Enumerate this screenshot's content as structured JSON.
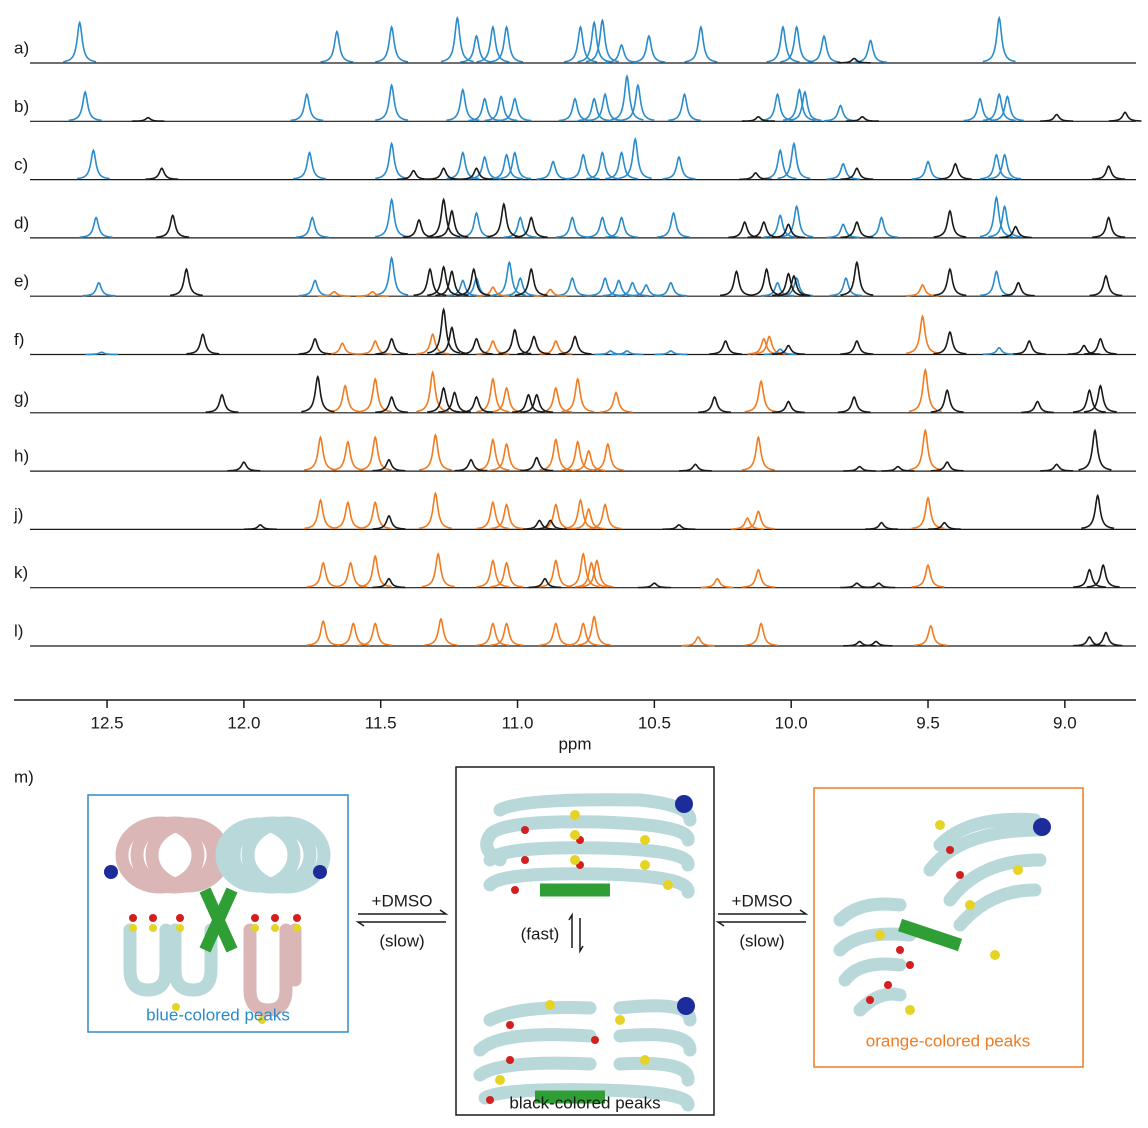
{
  "chart_data": {
    "type": "spectrum",
    "x_label": "ppm",
    "xlim": [
      12.84,
      8.74
    ],
    "xticks": [
      12.5,
      {
        "value": 12,
        "label": "12.0"
      },
      11.5,
      {
        "value": 11,
        "label": "11.0"
      },
      10.5,
      {
        "value": 10,
        "label": "10.0"
      },
      9.5,
      {
        "value": 9,
        "label": "9.0"
      }
    ],
    "series": [
      {
        "name": "a)",
        "peaks": [
          {
            "color": "#2b8ccc",
            "x": [
              12.6,
              11.66,
              11.46,
              11.22,
              11.15,
              11.09,
              11.04,
              10.77,
              10.72,
              10.69,
              10.62,
              10.52,
              10.33,
              10.03,
              9.98,
              9.88,
              9.71,
              9.24
            ],
            "values": [
              0.9,
              0.7,
              0.8,
              1.0,
              0.6,
              0.8,
              0.8,
              0.8,
              0.9,
              0.95,
              0.4,
              0.6,
              0.8,
              0.8,
              0.8,
              0.6,
              0.5,
              1.0
            ]
          },
          {
            "color": "#1a1a1a",
            "x": [
              9.77
            ],
            "values": [
              0.1
            ]
          }
        ]
      },
      {
        "name": "b)",
        "peaks": [
          {
            "color": "#2b8ccc",
            "x": [
              12.58,
              11.77,
              11.46,
              11.2,
              11.12,
              11.06,
              11.01,
              10.79,
              10.72,
              10.68,
              10.6,
              10.56,
              10.39,
              10.05,
              9.97,
              9.95,
              9.82,
              9.31,
              9.24,
              9.21
            ],
            "values": [
              0.65,
              0.6,
              0.8,
              0.7,
              0.5,
              0.55,
              0.5,
              0.5,
              0.5,
              0.6,
              1.0,
              0.8,
              0.6,
              0.6,
              0.7,
              0.65,
              0.35,
              0.5,
              0.6,
              0.55
            ]
          },
          {
            "color": "#1a1a1a",
            "x": [
              12.35,
              10.12,
              9.74,
              9.03,
              8.78
            ],
            "values": [
              0.08,
              0.1,
              0.1,
              0.15,
              0.2
            ]
          }
        ]
      },
      {
        "name": "c)",
        "peaks": [
          {
            "color": "#2b8ccc",
            "x": [
              12.55,
              11.76,
              11.46,
              11.2,
              11.12,
              11.04,
              11.01,
              10.87,
              10.76,
              10.69,
              10.62,
              10.57,
              10.41,
              10.04,
              9.99,
              9.81,
              9.5,
              9.25,
              9.22
            ],
            "values": [
              0.65,
              0.6,
              0.8,
              0.6,
              0.5,
              0.55,
              0.6,
              0.4,
              0.55,
              0.6,
              0.6,
              0.9,
              0.5,
              0.65,
              0.8,
              0.35,
              0.4,
              0.55,
              0.55
            ]
          },
          {
            "color": "#1a1a1a",
            "x": [
              12.3,
              11.38,
              11.27,
              11.15,
              10.13,
              9.76,
              9.4,
              8.84
            ],
            "values": [
              0.25,
              0.2,
              0.25,
              0.25,
              0.15,
              0.25,
              0.35,
              0.3
            ]
          }
        ]
      },
      {
        "name": "d)",
        "peaks": [
          {
            "color": "#2b8ccc",
            "x": [
              12.54,
              11.75,
              11.46,
              11.15,
              10.99,
              10.8,
              10.69,
              10.62,
              10.43,
              10.04,
              9.98,
              9.81,
              9.67,
              9.25,
              9.22
            ],
            "values": [
              0.45,
              0.45,
              0.85,
              0.55,
              0.45,
              0.45,
              0.45,
              0.45,
              0.55,
              0.5,
              0.7,
              0.3,
              0.45,
              0.9,
              0.7
            ]
          },
          {
            "color": "#1a1a1a",
            "x": [
              12.26,
              11.36,
              11.27,
              11.24,
              11.05,
              10.95,
              10.17,
              10.1,
              10.01,
              9.76,
              9.42,
              9.18,
              8.84
            ],
            "values": [
              0.5,
              0.4,
              0.85,
              0.6,
              0.75,
              0.45,
              0.35,
              0.35,
              0.3,
              0.35,
              0.6,
              0.25,
              0.45
            ]
          }
        ]
      },
      {
        "name": "e)",
        "peaks": [
          {
            "color": "#2b8ccc",
            "x": [
              12.53,
              11.74,
              11.46,
              11.2,
              11.15,
              11.03,
              10.99,
              10.8,
              10.68,
              10.63,
              10.58,
              10.53,
              10.44,
              10.05,
              9.98,
              9.8,
              9.25
            ],
            "values": [
              0.3,
              0.35,
              0.85,
              0.35,
              0.4,
              0.75,
              0.4,
              0.4,
              0.4,
              0.35,
              0.3,
              0.25,
              0.3,
              0.3,
              0.4,
              0.4,
              0.55
            ]
          },
          {
            "color": "#f07c22",
            "x": [
              11.67,
              11.53,
              11.09,
              10.88,
              9.52
            ],
            "values": [
              0.1,
              0.1,
              0.2,
              0.15,
              0.25
            ]
          },
          {
            "color": "#1a1a1a",
            "x": [
              12.21,
              11.32,
              11.27,
              11.24,
              11.16,
              10.95,
              10.2,
              10.09,
              10.01,
              9.99,
              9.76,
              9.42,
              9.17,
              8.85
            ],
            "values": [
              0.6,
              0.6,
              0.65,
              0.55,
              0.6,
              0.6,
              0.55,
              0.6,
              0.5,
              0.45,
              0.75,
              0.6,
              0.3,
              0.45
            ]
          }
        ]
      },
      {
        "name": "f)",
        "peaks": [
          {
            "color": "#f07c22",
            "x": [
              11.64,
              11.52,
              11.31,
              11.09,
              10.86,
              10.1,
              10.08,
              9.52
            ],
            "values": [
              0.25,
              0.3,
              0.45,
              0.3,
              0.3,
              0.35,
              0.4,
              0.85
            ]
          },
          {
            "color": "#2b8ccc",
            "x": [
              12.52,
              10.66,
              10.6,
              10.44,
              10.04,
              9.24
            ],
            "values": [
              0.05,
              0.08,
              0.08,
              0.08,
              0.12,
              0.15
            ]
          },
          {
            "color": "#1a1a1a",
            "x": [
              12.15,
              11.74,
              11.46,
              11.27,
              11.24,
              11.15,
              11.01,
              10.94,
              10.79,
              10.24,
              10.01,
              9.76,
              9.42,
              9.13,
              8.93,
              8.87
            ],
            "values": [
              0.45,
              0.35,
              0.35,
              1.0,
              0.6,
              0.35,
              0.55,
              0.4,
              0.4,
              0.3,
              0.2,
              0.3,
              0.5,
              0.3,
              0.2,
              0.35
            ]
          }
        ]
      },
      {
        "name": "g)",
        "peaks": [
          {
            "color": "#f07c22",
            "x": [
              11.63,
              11.52,
              11.31,
              11.09,
              11.04,
              10.86,
              10.78,
              10.64,
              10.11,
              9.51
            ],
            "values": [
              0.6,
              0.75,
              0.9,
              0.75,
              0.55,
              0.55,
              0.75,
              0.45,
              0.7,
              0.95
            ]
          },
          {
            "color": "#1a1a1a",
            "x": [
              12.08,
              11.73,
              11.46,
              11.27,
              11.23,
              11.15,
              10.96,
              10.93,
              10.28,
              10.01,
              9.77,
              9.43,
              9.1,
              8.91,
              8.87
            ],
            "values": [
              0.4,
              0.8,
              0.35,
              0.55,
              0.45,
              0.35,
              0.4,
              0.4,
              0.35,
              0.25,
              0.35,
              0.5,
              0.25,
              0.5,
              0.6
            ]
          }
        ]
      },
      {
        "name": "h)",
        "peaks": [
          {
            "color": "#f07c22",
            "x": [
              11.72,
              11.62,
              11.52,
              11.3,
              11.09,
              11.04,
              10.86,
              10.78,
              10.74,
              10.67,
              10.12,
              9.51
            ],
            "values": [
              0.75,
              0.65,
              0.75,
              0.8,
              0.7,
              0.6,
              0.7,
              0.65,
              0.45,
              0.6,
              0.75,
              0.9
            ]
          },
          {
            "color": "#1a1a1a",
            "x": [
              12.0,
              11.47,
              11.17,
              10.93,
              10.35,
              9.75,
              9.61,
              9.43,
              9.03,
              8.89
            ],
            "values": [
              0.2,
              0.25,
              0.25,
              0.3,
              0.15,
              0.1,
              0.1,
              0.2,
              0.15,
              0.9
            ]
          }
        ]
      },
      {
        "name": "j)",
        "peaks": [
          {
            "color": "#f07c22",
            "x": [
              11.72,
              11.62,
              11.52,
              11.3,
              11.09,
              11.04,
              10.86,
              10.77,
              10.74,
              10.68,
              10.16,
              10.12,
              9.5
            ],
            "values": [
              0.65,
              0.6,
              0.6,
              0.8,
              0.6,
              0.55,
              0.55,
              0.65,
              0.45,
              0.55,
              0.25,
              0.4,
              0.7
            ]
          },
          {
            "color": "#1a1a1a",
            "x": [
              11.94,
              11.47,
              10.92,
              10.88,
              10.41,
              9.67,
              9.44,
              8.88
            ],
            "values": [
              0.1,
              0.3,
              0.2,
              0.2,
              0.1,
              0.15,
              0.15,
              0.75
            ]
          }
        ]
      },
      {
        "name": "k)",
        "peaks": [
          {
            "color": "#f07c22",
            "x": [
              11.71,
              11.61,
              11.52,
              11.29,
              11.09,
              11.04,
              10.86,
              10.76,
              10.73,
              10.71,
              10.27,
              10.12,
              9.5
            ],
            "values": [
              0.55,
              0.55,
              0.7,
              0.75,
              0.6,
              0.55,
              0.6,
              0.75,
              0.55,
              0.6,
              0.2,
              0.4,
              0.5
            ]
          },
          {
            "color": "#1a1a1a",
            "x": [
              11.47,
              10.9,
              10.5,
              9.76,
              9.68,
              8.91,
              8.86
            ],
            "values": [
              0.2,
              0.2,
              0.1,
              0.1,
              0.1,
              0.4,
              0.5
            ]
          }
        ]
      },
      {
        "name": "l)",
        "peaks": [
          {
            "color": "#f07c22",
            "x": [
              11.71,
              11.6,
              11.52,
              11.28,
              11.09,
              11.04,
              10.86,
              10.76,
              10.72,
              10.34,
              10.11,
              9.49
            ],
            "values": [
              0.55,
              0.5,
              0.5,
              0.6,
              0.5,
              0.5,
              0.5,
              0.5,
              0.65,
              0.2,
              0.5,
              0.45
            ]
          },
          {
            "color": "#1a1a1a",
            "x": [
              9.75,
              9.69,
              8.91,
              8.85
            ],
            "values": [
              0.1,
              0.1,
              0.2,
              0.3
            ]
          }
        ]
      }
    ]
  },
  "scheme": {
    "label": "m)",
    "panels": [
      {
        "caption": "blue-colored peaks"
      },
      {
        "caption": "black-colored peaks"
      },
      {
        "caption": "orange-colored peaks"
      }
    ],
    "arrows": [
      {
        "top": "+DMSO",
        "bottom": "(slow)"
      },
      {
        "top": "+DMSO",
        "bottom": "(slow)"
      }
    ],
    "fast": "(fast)"
  }
}
